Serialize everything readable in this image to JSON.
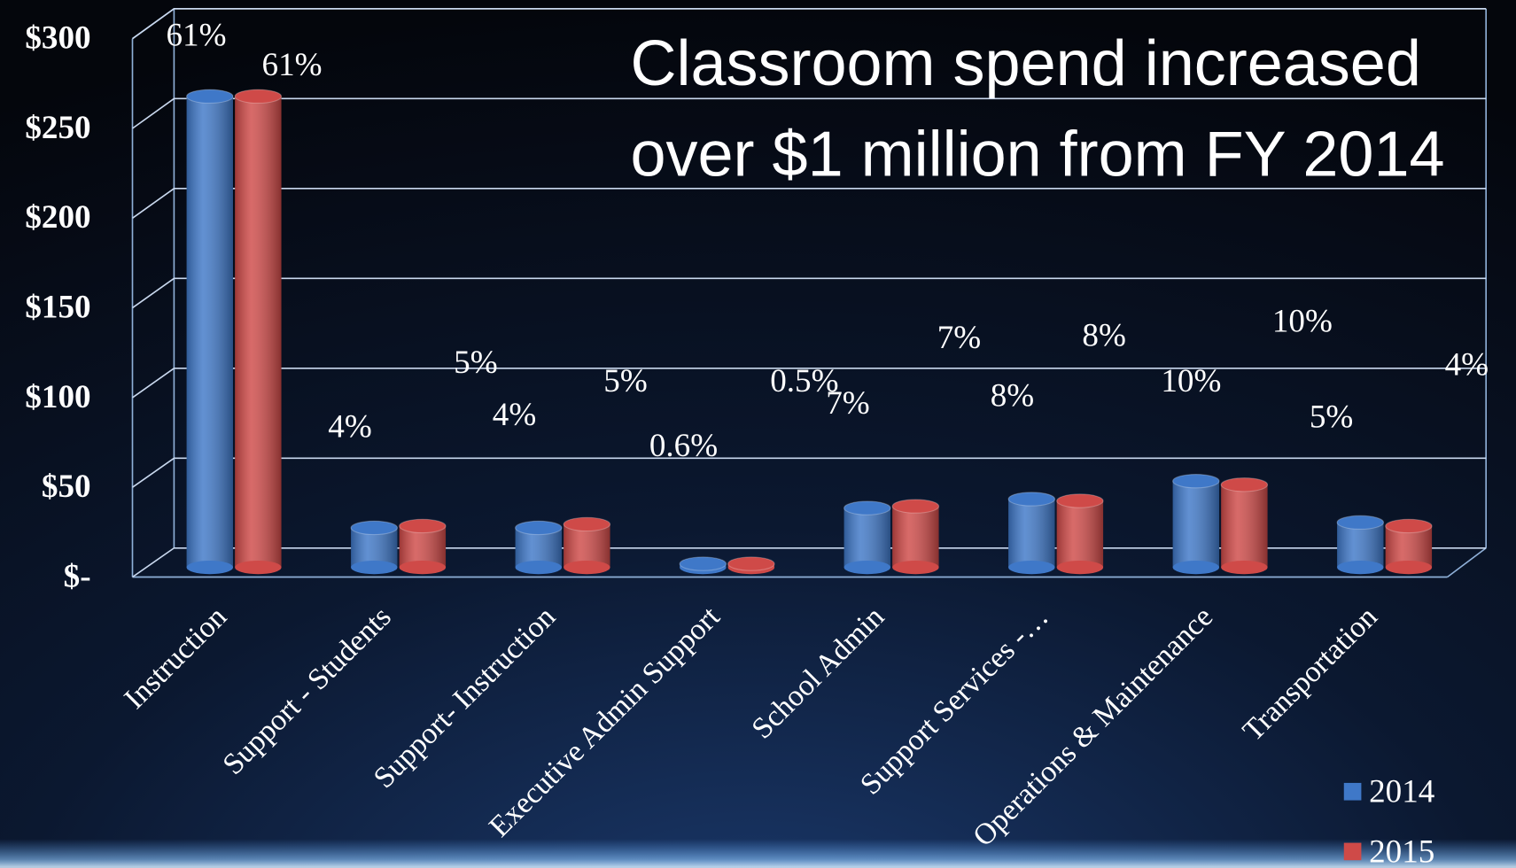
{
  "chart_data": {
    "type": "bar",
    "title": [
      "Classroom spend increased",
      "over $1 million from FY 2014"
    ],
    "categories": [
      "Instruction",
      "Support - Students",
      "Support- Instruction",
      "Executive Admin Support",
      "School Admin",
      "Support Services -…",
      "Operations & Maintenance",
      "Transportation"
    ],
    "series": [
      {
        "name": "2014",
        "color": "#3f78c8",
        "values": [
          262,
          22,
          22,
          2,
          33,
          38,
          48,
          25
        ],
        "labels": [
          "61%",
          "4%",
          "4%",
          "0.6%",
          "7%",
          "8%",
          "10%",
          "5%"
        ]
      },
      {
        "name": "2015",
        "color": "#cf4a48",
        "values": [
          262,
          23,
          24,
          2,
          34,
          37,
          46,
          23
        ],
        "labels": [
          "61%",
          "5%",
          "5%",
          "0.5%",
          "7%",
          "8%",
          "10%",
          "4%"
        ]
      }
    ],
    "ylim": [
      0,
      300
    ],
    "yticks": [
      {
        "value": 0,
        "label": "$-"
      },
      {
        "value": 50,
        "label": "$50"
      },
      {
        "value": 100,
        "label": "$100"
      },
      {
        "value": 150,
        "label": "$150"
      },
      {
        "value": 200,
        "label": "$200"
      },
      {
        "value": 250,
        "label": "$250"
      },
      {
        "value": 300,
        "label": "$300"
      }
    ],
    "grid": true,
    "legend": "bottom-right"
  }
}
